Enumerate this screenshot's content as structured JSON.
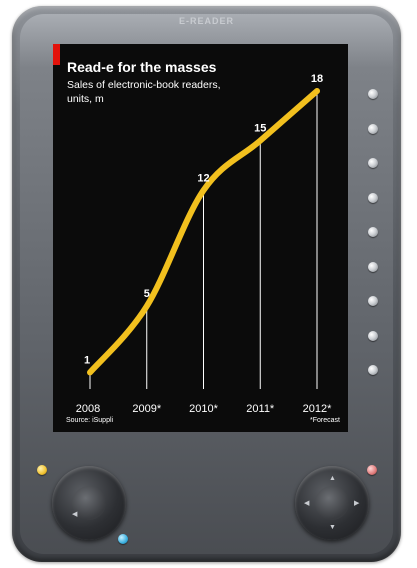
{
  "device": {
    "brand": "E-READER",
    "colors": {
      "yellow_button": "#f2c230",
      "blue_button": "#3ab0e0",
      "red_button": "#e07a7a"
    },
    "side_button_count": 9
  },
  "chart_data": {
    "type": "line",
    "title": "Read-e for the masses",
    "subtitle": "Sales of electronic-book readers, units, m",
    "categories": [
      "2008",
      "2009*",
      "2010*",
      "2011*",
      "2012*"
    ],
    "series": [
      {
        "values": [
          1,
          5,
          12,
          15,
          18
        ]
      }
    ],
    "data_labels": [
      "1",
      "5",
      "12",
      "15",
      "18"
    ],
    "ylim": [
      0,
      18
    ],
    "grid": false,
    "source": "Source: iSuppli",
    "note": "*Forecast",
    "colors": {
      "line": "#f2c01e",
      "background": "#0b0b0b",
      "text": "#ffffff",
      "accent": "#e3120b"
    }
  }
}
